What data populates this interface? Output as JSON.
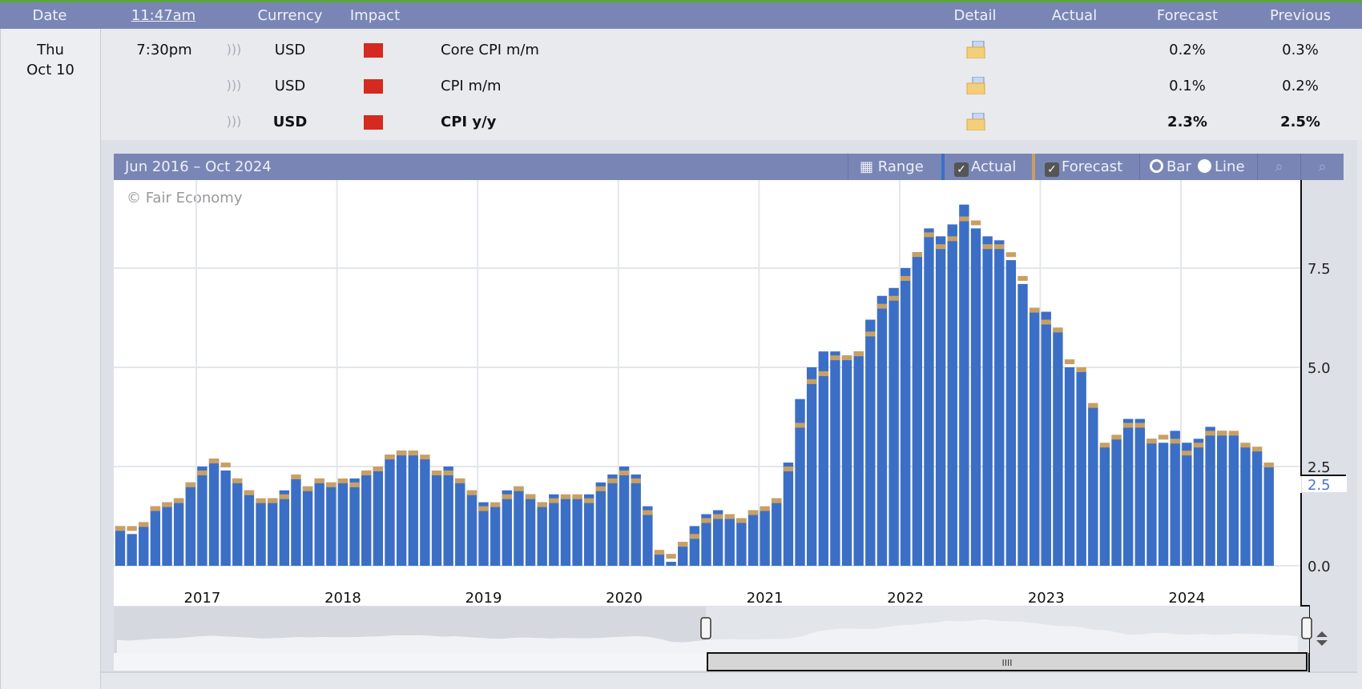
{
  "header": {
    "date": "Date",
    "time": "11:47am",
    "currency": "Currency",
    "impact": "Impact",
    "detail": "Detail",
    "actual": "Actual",
    "forecast": "Forecast",
    "previous": "Previous"
  },
  "day": {
    "weekday": "Thu",
    "date": "Oct 10"
  },
  "events": [
    {
      "time": "7:30pm",
      "currency": "USD",
      "impact": "high",
      "title": "Core CPI m/m",
      "actual": "",
      "forecast": "0.2%",
      "previous": "0.3%",
      "bold": false
    },
    {
      "time": "",
      "currency": "USD",
      "impact": "high",
      "title": "CPI m/m",
      "actual": "",
      "forecast": "0.1%",
      "previous": "0.2%",
      "bold": false
    },
    {
      "time": "",
      "currency": "USD",
      "impact": "high",
      "title": "CPI y/y",
      "actual": "",
      "forecast": "2.3%",
      "previous": "2.5%",
      "bold": true
    }
  ],
  "chart": {
    "range_title": "Jun 2016 – Oct 2024",
    "range_button": "Range",
    "actual_toggle": "Actual",
    "actual_checked": true,
    "forecast_toggle": "Forecast",
    "forecast_checked": true,
    "bar_option": "Bar",
    "line_option": "Line",
    "selected_type": "Bar",
    "copyright": "© Fair Economy",
    "last_value_label": "2.5"
  },
  "colors": {
    "actual": "#3b6fc6",
    "forecast": "#c9a063",
    "header": "#7986b5",
    "impact_high": "#d42a20"
  },
  "chart_data": {
    "type": "bar",
    "start": "Jun 2016",
    "x_tick_labels": [
      "2017",
      "2018",
      "2019",
      "2020",
      "2021",
      "2022",
      "2023",
      "2024"
    ],
    "y_tick_labels": [
      "0.0",
      "2.5",
      "5.0",
      "7.5"
    ],
    "ylim": [
      0,
      9.7
    ],
    "grid": true,
    "series": [
      {
        "name": "Actual",
        "values": [
          1.0,
          0.8,
          1.1,
          1.5,
          1.6,
          1.7,
          2.1,
          2.5,
          2.7,
          2.4,
          2.2,
          1.9,
          1.6,
          1.7,
          1.9,
          2.2,
          2.0,
          2.2,
          2.1,
          2.1,
          2.2,
          2.4,
          2.5,
          2.8,
          2.9,
          2.9,
          2.7,
          2.3,
          2.5,
          2.2,
          1.9,
          1.6,
          1.5,
          1.9,
          2.0,
          1.8,
          1.6,
          1.8,
          1.7,
          1.7,
          1.8,
          2.1,
          2.3,
          2.5,
          2.3,
          1.5,
          0.3,
          0.1,
          0.6,
          1.0,
          1.3,
          1.4,
          1.2,
          1.2,
          1.4,
          1.4,
          1.7,
          2.6,
          4.2,
          5.0,
          5.4,
          5.4,
          5.3,
          5.4,
          6.2,
          6.8,
          7.0,
          7.5,
          7.9,
          8.5,
          8.3,
          8.6,
          9.1,
          8.5,
          8.3,
          8.2,
          7.7,
          7.1,
          6.5,
          6.4,
          6.0,
          5.0,
          4.9,
          4.0,
          3.0,
          3.2,
          3.7,
          3.7,
          3.2,
          3.1,
          3.4,
          3.1,
          3.2,
          3.5,
          3.4,
          3.3,
          3.0,
          2.9,
          2.5
        ]
      },
      {
        "name": "Forecast",
        "values": [
          1.0,
          1.0,
          1.1,
          1.5,
          1.6,
          1.7,
          2.1,
          2.4,
          2.7,
          2.6,
          2.2,
          1.9,
          1.7,
          1.7,
          1.8,
          2.3,
          2.0,
          2.2,
          2.1,
          2.2,
          2.1,
          2.4,
          2.5,
          2.8,
          2.9,
          2.9,
          2.8,
          2.4,
          2.4,
          2.2,
          1.9,
          1.5,
          1.6,
          1.8,
          2.0,
          1.8,
          1.6,
          1.7,
          1.8,
          1.8,
          1.7,
          2.0,
          2.2,
          2.4,
          2.2,
          1.4,
          0.4,
          0.3,
          0.6,
          0.8,
          1.2,
          1.3,
          1.3,
          1.2,
          1.4,
          1.5,
          1.7,
          2.5,
          3.6,
          4.7,
          4.9,
          5.3,
          5.3,
          5.4,
          5.9,
          6.6,
          6.8,
          7.3,
          7.9,
          8.4,
          8.1,
          8.3,
          8.8,
          8.7,
          8.1,
          8.1,
          7.9,
          7.3,
          6.5,
          6.2,
          6.0,
          5.2,
          5.0,
          4.1,
          3.1,
          3.3,
          3.6,
          3.6,
          3.2,
          3.3,
          3.2,
          2.9,
          3.1,
          3.4,
          3.4,
          3.4,
          3.1,
          3.0,
          2.6
        ]
      }
    ]
  }
}
